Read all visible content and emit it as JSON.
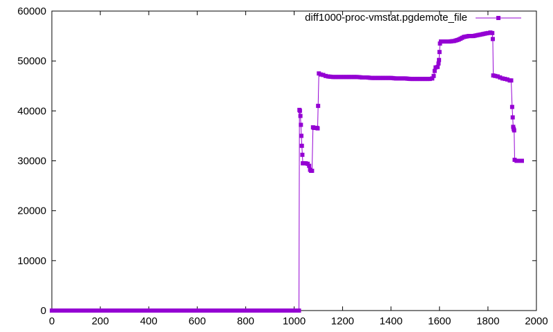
{
  "chart_data": {
    "type": "line",
    "title": "",
    "xlabel": "",
    "ylabel": "",
    "xlim": [
      0,
      2000
    ],
    "ylim": [
      0,
      60000
    ],
    "x_ticks": [
      0,
      200,
      400,
      600,
      800,
      1000,
      1200,
      1400,
      1600,
      1800,
      2000
    ],
    "y_ticks": [
      0,
      10000,
      20000,
      30000,
      40000,
      50000,
      60000
    ],
    "grid": false,
    "legend_position": "top-right",
    "series": [
      {
        "name": "diff1000-proc-vmstat.pgdemote_file",
        "color": "#9400d3",
        "marker": "square",
        "points": [
          [
            0,
            0
          ],
          [
            100,
            0
          ],
          [
            200,
            0
          ],
          [
            300,
            0
          ],
          [
            400,
            0
          ],
          [
            500,
            0
          ],
          [
            600,
            0
          ],
          [
            700,
            0
          ],
          [
            800,
            0
          ],
          [
            900,
            0
          ],
          [
            1000,
            0
          ],
          [
            1020,
            0
          ],
          [
            1022,
            40200
          ],
          [
            1024,
            40000
          ],
          [
            1026,
            39000
          ],
          [
            1028,
            37200
          ],
          [
            1030,
            35000
          ],
          [
            1032,
            33000
          ],
          [
            1034,
            31200
          ],
          [
            1036,
            29500
          ],
          [
            1040,
            29500
          ],
          [
            1048,
            29500
          ],
          [
            1056,
            29400
          ],
          [
            1062,
            29000
          ],
          [
            1066,
            28200
          ],
          [
            1070,
            28000
          ],
          [
            1074,
            28000
          ],
          [
            1078,
            36700
          ],
          [
            1082,
            36600
          ],
          [
            1088,
            36600
          ],
          [
            1094,
            36600
          ],
          [
            1097,
            36500
          ],
          [
            1099,
            41000
          ],
          [
            1102,
            47500
          ],
          [
            1110,
            47300
          ],
          [
            1120,
            47200
          ],
          [
            1130,
            47000
          ],
          [
            1140,
            46900
          ],
          [
            1160,
            46800
          ],
          [
            1180,
            46800
          ],
          [
            1200,
            46800
          ],
          [
            1220,
            46800
          ],
          [
            1240,
            46800
          ],
          [
            1260,
            46800
          ],
          [
            1280,
            46700
          ],
          [
            1300,
            46700
          ],
          [
            1320,
            46600
          ],
          [
            1340,
            46600
          ],
          [
            1360,
            46600
          ],
          [
            1380,
            46600
          ],
          [
            1400,
            46600
          ],
          [
            1420,
            46500
          ],
          [
            1440,
            46500
          ],
          [
            1460,
            46500
          ],
          [
            1480,
            46400
          ],
          [
            1500,
            46400
          ],
          [
            1520,
            46400
          ],
          [
            1540,
            46400
          ],
          [
            1560,
            46400
          ],
          [
            1570,
            46500
          ],
          [
            1576,
            47000
          ],
          [
            1580,
            48000
          ],
          [
            1584,
            48700
          ],
          [
            1592,
            48800
          ],
          [
            1596,
            49500
          ],
          [
            1598,
            50200
          ],
          [
            1600,
            51800
          ],
          [
            1602,
            53500
          ],
          [
            1606,
            53900
          ],
          [
            1620,
            53900
          ],
          [
            1640,
            53900
          ],
          [
            1660,
            54000
          ],
          [
            1680,
            54300
          ],
          [
            1700,
            54800
          ],
          [
            1720,
            55000
          ],
          [
            1740,
            55000
          ],
          [
            1760,
            55200
          ],
          [
            1780,
            55400
          ],
          [
            1800,
            55600
          ],
          [
            1810,
            55700
          ],
          [
            1818,
            55600
          ],
          [
            1820,
            54400
          ],
          [
            1822,
            47100
          ],
          [
            1830,
            47000
          ],
          [
            1840,
            46900
          ],
          [
            1850,
            46700
          ],
          [
            1860,
            46500
          ],
          [
            1870,
            46400
          ],
          [
            1880,
            46300
          ],
          [
            1890,
            46100
          ],
          [
            1896,
            46100
          ],
          [
            1900,
            40800
          ],
          [
            1902,
            38700
          ],
          [
            1904,
            36800
          ],
          [
            1906,
            36400
          ],
          [
            1908,
            36100
          ],
          [
            1910,
            30200
          ],
          [
            1918,
            30000
          ],
          [
            1926,
            30000
          ],
          [
            1934,
            30000
          ],
          [
            1940,
            30000
          ]
        ]
      }
    ]
  }
}
